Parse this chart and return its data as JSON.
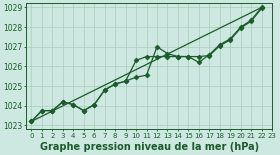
{
  "bg_color": "#cce8e0",
  "grid_color": "#aaccbb",
  "line_color": "#1a5c2a",
  "xlabel": "Graphe pression niveau de la mer (hPa)",
  "xlabel_fontsize": 7,
  "xlim": [
    -0.5,
    23
  ],
  "ylim": [
    1022.8,
    1029.2
  ],
  "yticks": [
    1023,
    1024,
    1025,
    1026,
    1027,
    1028,
    1029
  ],
  "xticks": [
    0,
    1,
    2,
    3,
    4,
    5,
    6,
    7,
    8,
    9,
    10,
    11,
    12,
    13,
    14,
    15,
    16,
    17,
    18,
    19,
    20,
    21,
    22,
    23
  ],
  "xtick_labels": [
    "0",
    "1",
    "2",
    "3",
    "4",
    "5",
    "6",
    "7",
    "8",
    "9",
    "10",
    "11",
    "12",
    "13",
    "14",
    "15",
    "16",
    "17",
    "18",
    "19",
    "20",
    "21",
    "22",
    "23"
  ],
  "series1_x": [
    0,
    1,
    2,
    3,
    4,
    5,
    6,
    7,
    8,
    9,
    10,
    11,
    12,
    13,
    14,
    15,
    16,
    17,
    18,
    19,
    20,
    21,
    22
  ],
  "series1_y": [
    1023.2,
    1023.75,
    1023.75,
    1024.2,
    1024.05,
    1023.75,
    1024.05,
    1024.8,
    1025.1,
    1025.25,
    1025.45,
    1025.55,
    1027.0,
    1026.65,
    1026.5,
    1026.5,
    1026.2,
    1026.6,
    1027.1,
    1027.4,
    1028.0,
    1028.35,
    1029.0
  ],
  "series2_x": [
    0,
    1,
    2,
    3,
    4,
    5,
    6,
    7,
    8,
    9,
    10,
    11,
    12,
    13,
    14,
    15,
    16,
    17,
    18,
    19,
    20,
    21,
    22
  ],
  "series2_y": [
    1023.2,
    1023.75,
    1023.75,
    1024.2,
    1024.05,
    1023.75,
    1024.05,
    1024.8,
    1025.1,
    1025.25,
    1026.3,
    1026.5,
    1026.5,
    1026.5,
    1026.5,
    1026.5,
    1026.5,
    1026.55,
    1027.05,
    1027.35,
    1027.95,
    1028.3,
    1028.95
  ],
  "trend_x": [
    0,
    22
  ],
  "trend_y": [
    1023.2,
    1029.0
  ],
  "marker": "D",
  "markersize": 2.5,
  "linewidth": 0.9
}
